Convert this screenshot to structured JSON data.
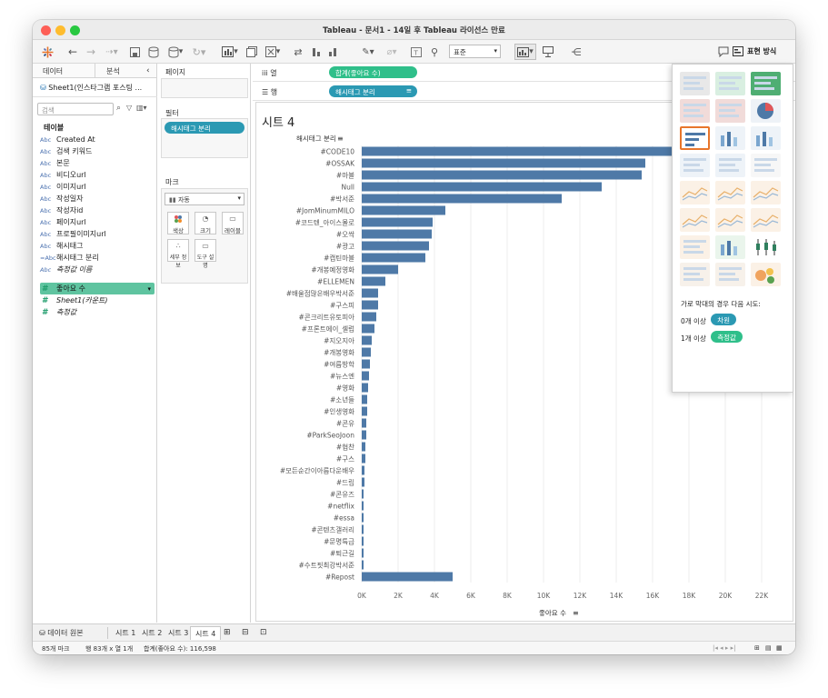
{
  "window": {
    "title": "Tableau - 문서1 - 14일 후 Tableau 라이선스 만료",
    "traffic_colors": [
      "#fe5f57",
      "#febc2e",
      "#28c840"
    ]
  },
  "toolbar": {
    "fit_value": "표준",
    "show_me_label": "표현 방식"
  },
  "sidebar": {
    "tab_data": "데이터",
    "tab_analysis": "분석",
    "datasource": "Sheet1(인스타그램 포스팅 ...",
    "search_placeholder": "검색",
    "heading": "테이블",
    "fields": [
      {
        "type": "Abc",
        "name": "Created At",
        "measure": false
      },
      {
        "type": "Abc",
        "name": "검색 키워드",
        "measure": false
      },
      {
        "type": "Abc",
        "name": "본문",
        "measure": false
      },
      {
        "type": "Abc",
        "name": "비디오url",
        "measure": false
      },
      {
        "type": "Abc",
        "name": "이미지url",
        "measure": false
      },
      {
        "type": "Abc",
        "name": "작성일자",
        "measure": false
      },
      {
        "type": "Abc",
        "name": "작성자id",
        "measure": false
      },
      {
        "type": "Abc",
        "name": "페이지url",
        "measure": false
      },
      {
        "type": "Abc",
        "name": "프로필이미지url",
        "measure": false
      },
      {
        "type": "Abc",
        "name": "해시태그",
        "measure": false
      },
      {
        "type": "=Abc",
        "name": "해시태그 분리",
        "measure": false
      },
      {
        "type": "Abc",
        "name": "측정값 이름",
        "measure": false,
        "italic": true
      }
    ],
    "measures": [
      {
        "type": "#",
        "name": "좋아요 수",
        "selected": true
      },
      {
        "type": "#",
        "name": "Sheet1(카운트)",
        "italic": true
      },
      {
        "type": "#",
        "name": "측정값",
        "italic": true
      }
    ]
  },
  "cards": {
    "pages_title": "페이지",
    "filters_title": "필터",
    "filter_pill": "해시태그 분리",
    "marks_title": "마크",
    "marks_type": "자동",
    "mark_buttons": [
      "색상",
      "크기",
      "레이블",
      "세부 정보",
      "도구 설명"
    ]
  },
  "shelves": {
    "columns_label": "열",
    "rows_label": "행",
    "columns_pill": "합계(좋아요 수)",
    "rows_pill": "해시태그 분리"
  },
  "view": {
    "sheet_title": "시트 4"
  },
  "chart_data": {
    "type": "bar",
    "orientation": "horizontal",
    "row_header": "해시태그 분리",
    "xlabel": "좋아요 수",
    "xlim": [
      0,
      23000
    ],
    "x_ticks": [
      "0K",
      "2K",
      "4K",
      "6K",
      "8K",
      "10K",
      "12K",
      "14K",
      "16K",
      "18K",
      "20K",
      "22K"
    ],
    "bar_color": "#4e79a7",
    "categories": [
      "#CODE10",
      "#OSSAK",
      "#마블",
      "Null",
      "#박서준",
      "#JomMinumMILO",
      "#코드텐_아이스몰로",
      "#오싹",
      "#광고",
      "#캡틴마블",
      "#개봉예정영화",
      "#ELLEMEN",
      "#배울점많은배우박서준",
      "#구스피",
      "#콘크리트유토피아",
      "#프론트에이_셀럽",
      "#지오지아",
      "#개봉영화",
      "#여름방학",
      "#뉴스엔",
      "#영화",
      "#소년들",
      "#인생영화",
      "#콘유",
      "#ParkSeoJoon",
      "#협찬",
      "#구스",
      "#모든순간이아름다운배우",
      "#드림",
      "#콘유즈",
      "#netflix",
      "#essa",
      "#콘텐츠갤러리",
      "#문명특급",
      "#퇴근길",
      "#수트핏최강박서준",
      "#Repost"
    ],
    "values": [
      17800,
      15600,
      15400,
      13200,
      11000,
      4600,
      3900,
      3850,
      3700,
      3500,
      2000,
      1300,
      900,
      900,
      800,
      700,
      550,
      500,
      450,
      400,
      350,
      300,
      300,
      250,
      250,
      200,
      200,
      150,
      150,
      100,
      100,
      100,
      100,
      100,
      100,
      100,
      5000
    ]
  },
  "show_me": {
    "hint": "가로 막대의 경우 다음 시도:",
    "req1_prefix": "0개 이상",
    "req1_pill": "차원",
    "req2_prefix": "1개 이상",
    "req2_pill": "측정값"
  },
  "tabs": {
    "datasource": "데이터 원본",
    "sheets": [
      "시트 1",
      "시트 2",
      "시트 3",
      "시트 4"
    ],
    "active_index": 3
  },
  "status": {
    "marks": "85개 마크",
    "dims": "행 83개 x 열 1개",
    "sum": "합계(좋아요 수): 116,598"
  }
}
